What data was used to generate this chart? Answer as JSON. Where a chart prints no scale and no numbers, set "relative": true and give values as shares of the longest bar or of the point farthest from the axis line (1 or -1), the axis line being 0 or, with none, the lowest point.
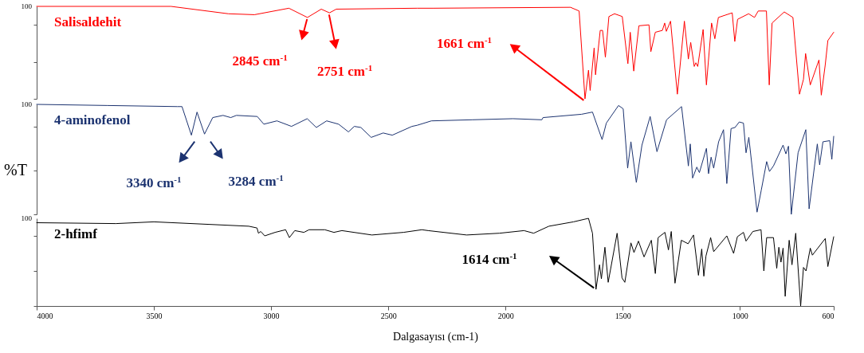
{
  "chart_data": [
    {
      "type": "line",
      "relative": true,
      "xlim": [
        4000,
        600
      ],
      "tick_labels": false,
      "series": [
        {
          "name": "Salisaldehit",
          "color": "#ff0000",
          "x": [
            4000,
            3427,
            3182,
            3071,
            2924,
            2845,
            2786,
            2751,
            2722,
            2377,
            2310,
            1723,
            1686,
            1661,
            1646,
            1639,
            1622,
            1616,
            1596,
            1586,
            1574,
            1559,
            1535,
            1502,
            1478,
            1468,
            1453,
            1431,
            1388,
            1380,
            1361,
            1331,
            1321,
            1314,
            1296,
            1267,
            1237,
            1220,
            1210,
            1195,
            1188,
            1180,
            1157,
            1143,
            1121,
            1107,
            1092,
            1033,
            1022,
            1010,
            963,
            938,
            922,
            887,
            875,
            863,
            811,
            774,
            746,
            729,
            720,
            700,
            663,
            653,
            636,
            625,
            600
          ],
          "values": [
            1.0,
            1.0,
            0.92,
            0.91,
            0.98,
            0.88,
            0.97,
            0.93,
            0.97,
            0.98,
            0.98,
            0.99,
            0.95,
            0,
            0.31,
            0.09,
            0.55,
            0.26,
            0.74,
            0.74,
            0.45,
            0.89,
            0.92,
            0.89,
            0.38,
            0.72,
            0.3,
            0.79,
            0.8,
            0.51,
            0.72,
            0.74,
            0.82,
            0.73,
            0.84,
            0.05,
            0.84,
            0.43,
            0.61,
            0.35,
            0.39,
            0.35,
            0.75,
            0.15,
            0.82,
            0.65,
            0.88,
            0.93,
            0.62,
            0.86,
            0.92,
            0.88,
            0.95,
            0.95,
            0.15,
            0.82,
            0.94,
            0.88,
            0.05,
            0.21,
            0.49,
            0.15,
            0.42,
            0.04,
            0.37,
            0.63,
            0.72
          ]
        }
      ],
      "annotations": [
        "100",
        "2845 cm$^{-1}$",
        "2751 cm$^{-1}$",
        "1661 cm$^{-1}$"
      ]
    },
    {
      "type": "line",
      "relative": true,
      "xlim": [
        4000,
        600
      ],
      "tick_labels": false,
      "ylabel": "%T",
      "series": [
        {
          "name": "4-aminofenol",
          "color": "#1c3370",
          "x": [
            4000,
            3700,
            3400,
            3380,
            3340,
            3316,
            3284,
            3249,
            3205,
            3172,
            3148,
            3059,
            3031,
            2975,
            2913,
            2846,
            2807,
            2763,
            2712,
            2670,
            2645,
            2617,
            2573,
            2522,
            2483,
            2399,
            2377,
            2316,
            2143,
            1968,
            1845,
            1840,
            1676,
            1629,
            1588,
            1570,
            1518,
            1498,
            1479,
            1465,
            1442,
            1418,
            1383,
            1354,
            1313,
            1249,
            1220,
            1212,
            1202,
            1184,
            1173,
            1143,
            1134,
            1123,
            1112,
            1091,
            1070,
            1056,
            1038,
            1021,
            1003,
            985,
            974,
            962,
            927,
            909,
            886,
            874,
            857,
            816,
            804,
            793,
            781,
            752,
            719,
            705,
            670,
            660,
            646,
            617,
            608,
            600
          ],
          "values": [
            1.0,
            0.99,
            0.98,
            0.98,
            0.72,
            0.93,
            0.73,
            0.88,
            0.9,
            0.88,
            0.9,
            0.89,
            0.82,
            0.85,
            0.8,
            0.87,
            0.79,
            0.85,
            0.82,
            0.75,
            0.8,
            0.79,
            0.7,
            0.74,
            0.72,
            0.8,
            0.81,
            0.85,
            0.86,
            0.87,
            0.86,
            0.88,
            0.91,
            0.93,
            0.68,
            0.83,
            0.99,
            0.96,
            0.42,
            0.66,
            0.29,
            0.63,
            0.89,
            0.57,
            0.86,
            0.98,
            0.44,
            0.64,
            0.33,
            0.43,
            0.38,
            0.6,
            0.37,
            0.52,
            0.42,
            0.66,
            0.77,
            0.28,
            0.78,
            0.79,
            0.84,
            0.83,
            0.56,
            0.7,
            0.02,
            0.22,
            0.48,
            0.39,
            0.44,
            0.63,
            0.55,
            0.62,
            0,
            0.56,
            0.77,
            0.05,
            0.64,
            0.45,
            0.66,
            0.67,
            0.5,
            0.71
          ]
        }
      ],
      "annotations": [
        "100",
        "3340  cm$^{-1}$",
        "3284 cm$^{-1}$"
      ]
    },
    {
      "type": "line",
      "relative": true,
      "xlim": [
        4000,
        600
      ],
      "xticks": [
        4000,
        3500,
        3000,
        2500,
        2000,
        1500,
        1000,
        600
      ],
      "xlabel": "Dalgasayısı (cm-1)",
      "tick_labels": "x",
      "series": [
        {
          "name": "2-hfimf",
          "color": "#000000",
          "x": [
            4000,
            3662,
            3500,
            3095,
            3060,
            3054,
            3044,
            3027,
            2983,
            2938,
            2922,
            2899,
            2860,
            2838,
            2771,
            2732,
            2698,
            2570,
            2435,
            2357,
            2330,
            2166,
            2026,
            1921,
            1880,
            1815,
            1710,
            1646,
            1629,
            1614,
            1599,
            1591,
            1576,
            1562,
            1524,
            1503,
            1491,
            1465,
            1452,
            1433,
            1409,
            1378,
            1361,
            1349,
            1320,
            1305,
            1293,
            1277,
            1250,
            1221,
            1198,
            1177,
            1163,
            1154,
            1145,
            1125,
            1112,
            1056,
            1027,
            1011,
            985,
            974,
            945,
            910,
            898,
            886,
            857,
            843,
            834,
            825,
            816,
            807,
            790,
            778,
            762,
            741,
            729,
            718,
            700,
            691,
            636,
            625,
            600
          ],
          "values": [
            0.95,
            0.94,
            0.96,
            0.91,
            0.89,
            0.83,
            0.85,
            0.8,
            0.84,
            0.87,
            0.78,
            0.86,
            0.84,
            0.87,
            0.87,
            0.84,
            0.86,
            0.81,
            0.84,
            0.87,
            0.86,
            0.81,
            0.83,
            0.86,
            0.83,
            0.91,
            0.96,
            1.0,
            0.83,
            0.19,
            0.47,
            0.31,
            0.67,
            0.27,
            0.83,
            0.32,
            0.27,
            0.72,
            0.61,
            0.74,
            0.56,
            0.75,
            0.37,
            0.78,
            0.84,
            0.64,
            0.85,
            0.26,
            0.75,
            0.71,
            0.81,
            0.35,
            0.65,
            0.34,
            0.57,
            0.78,
            0.62,
            0.8,
            0.6,
            0.79,
            0.84,
            0.74,
            0.85,
            0.87,
            0.4,
            0.78,
            0.78,
            0.43,
            0.67,
            0.5,
            0.66,
            0.11,
            0.75,
            0.47,
            0.83,
            0,
            0.44,
            0.4,
            0.66,
            0.58,
            0.77,
            0.45,
            0.79
          ]
        }
      ],
      "annotations": [
        "100",
        "1614 cm$^{-1}$"
      ]
    }
  ]
}
